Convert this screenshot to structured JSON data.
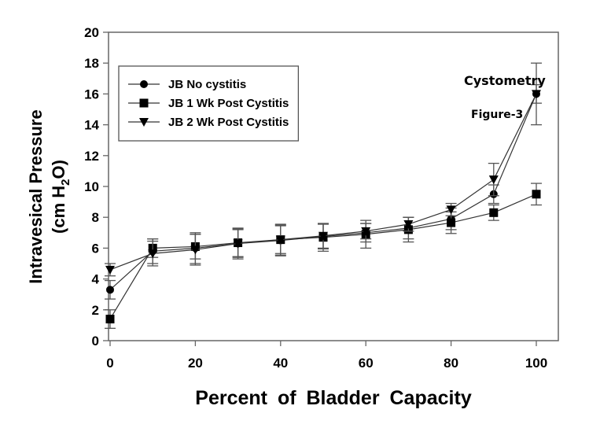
{
  "chart_data": {
    "type": "line",
    "title": "",
    "annotations": [
      "Cystometry",
      "Figure-3"
    ],
    "xlabel": "Percent of Bladder Capacity",
    "ylabel": "Intravesical Pressure",
    "ylabel_unit": "(cm H2O)",
    "xlim": [
      0,
      100
    ],
    "ylim": [
      0,
      20
    ],
    "xticks": [
      0,
      20,
      40,
      60,
      80,
      100
    ],
    "yticks": [
      0,
      2,
      4,
      6,
      8,
      10,
      12,
      14,
      16,
      18,
      20
    ],
    "grid": false,
    "legend_position": "top-left",
    "x": [
      0,
      10,
      20,
      30,
      40,
      50,
      60,
      70,
      80,
      90,
      100
    ],
    "series": [
      {
        "name": "JB No cystitis",
        "marker": "circle",
        "values": [
          3.3,
          5.8,
          6.0,
          6.3,
          6.5,
          6.75,
          7.0,
          7.3,
          7.9,
          9.5,
          16.0
        ],
        "error": [
          0.6,
          0.8,
          1.0,
          0.9,
          1.0,
          0.8,
          0.6,
          0.7,
          0.7,
          0.6,
          0.6
        ]
      },
      {
        "name": "JB 1 Wk Post Cystitis",
        "marker": "square",
        "values": [
          1.4,
          6.0,
          6.1,
          6.35,
          6.55,
          6.7,
          6.9,
          7.2,
          7.65,
          8.3,
          9.5
        ],
        "error": [
          0.6,
          0.6,
          0.8,
          0.9,
          1.0,
          0.9,
          0.9,
          0.8,
          0.7,
          0.5,
          0.7
        ]
      },
      {
        "name": "JB 2 Wk Post Cystitis",
        "marker": "triangle-down",
        "values": [
          4.6,
          5.65,
          5.9,
          6.3,
          6.55,
          6.8,
          7.1,
          7.55,
          8.5,
          10.45,
          16.0
        ],
        "error": [
          0.4,
          0.8,
          1.0,
          1.0,
          0.9,
          0.8,
          0.5,
          0.45,
          0.4,
          1.05,
          2.0
        ]
      }
    ]
  }
}
